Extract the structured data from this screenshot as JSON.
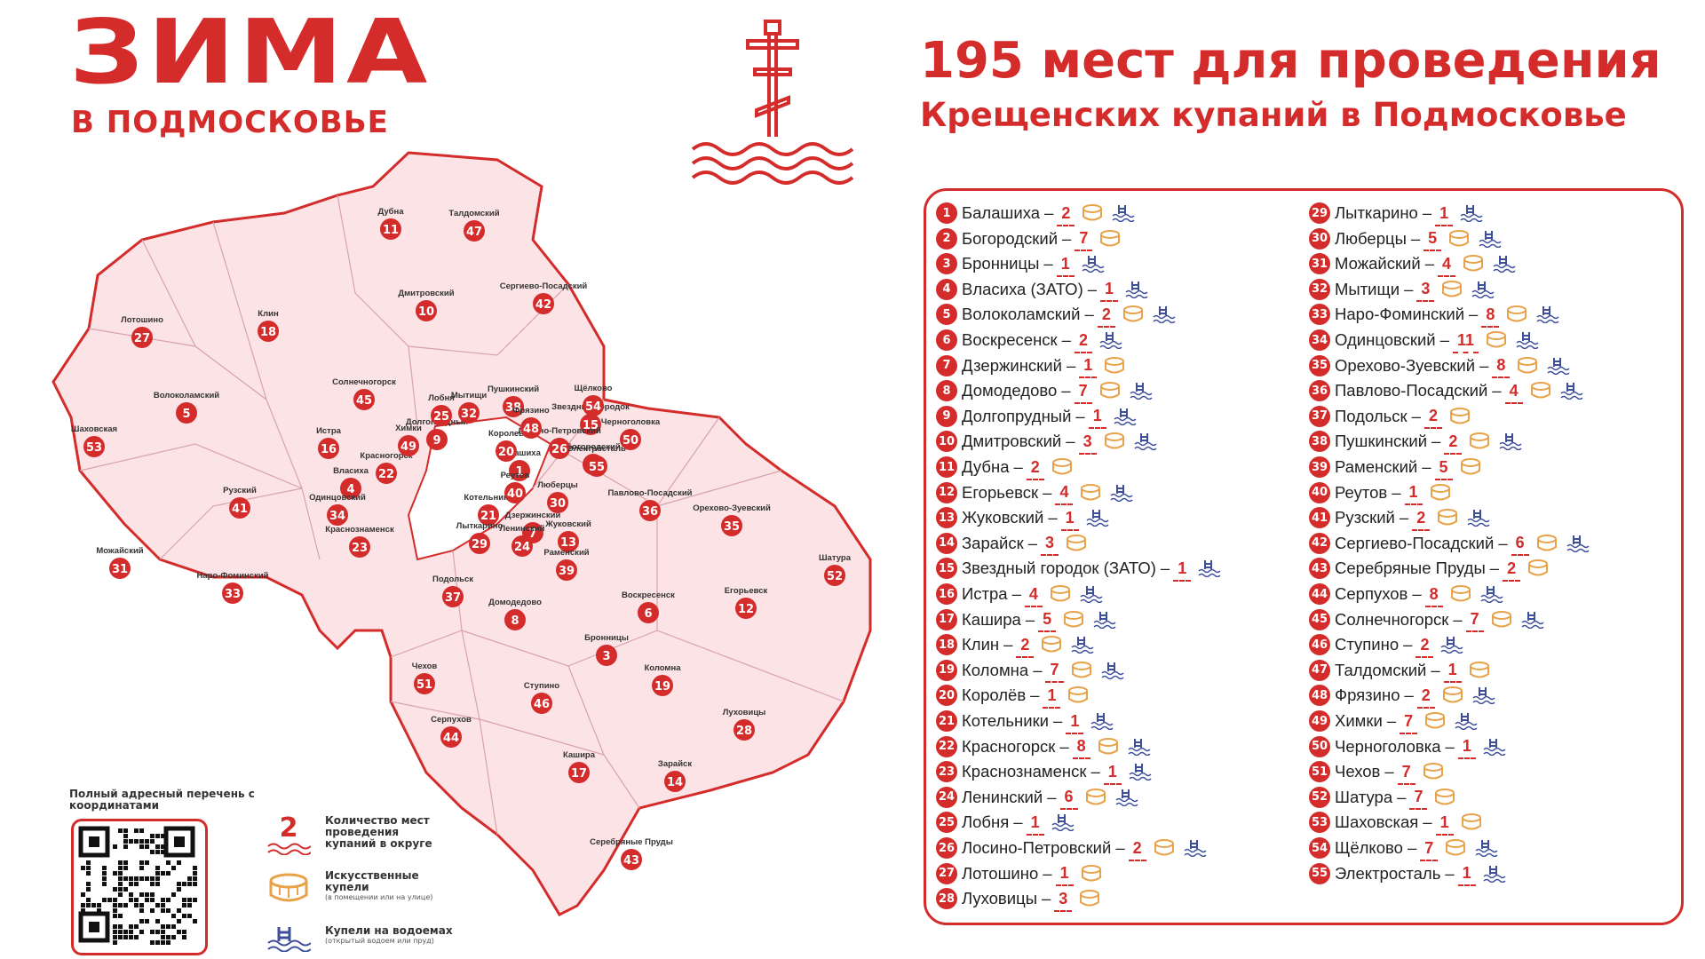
{
  "header": {
    "brand_title": "ЗИМА",
    "brand_subtitle": "В ПОДМОСКОВЬЕ",
    "headline_line1": "195 мест для проведения",
    "headline_line2": "Крещенских купаний в Подмосковье"
  },
  "colors": {
    "accent": "#d42b2b",
    "region_fill": "#fbe3e6",
    "font_icon": "#e8a24a",
    "pool_icon": "#3d4f9a"
  },
  "map": {
    "labels": [
      {
        "n": "1",
        "name": "Балашиха"
      },
      {
        "n": "2",
        "name": "Богородский"
      },
      {
        "n": "3",
        "name": "Бронницы"
      },
      {
        "n": "4",
        "name": "Власиха"
      },
      {
        "n": "5",
        "name": "Волоколамский"
      },
      {
        "n": "6",
        "name": "Воскресенск"
      },
      {
        "n": "7",
        "name": "Дзержинский"
      },
      {
        "n": "8",
        "name": "Домодедово"
      },
      {
        "n": "9",
        "name": "Долгопрудный"
      },
      {
        "n": "10",
        "name": "Дмитровский"
      },
      {
        "n": "11",
        "name": "Дубна"
      },
      {
        "n": "12",
        "name": "Егорьевск"
      },
      {
        "n": "13",
        "name": "Жуковский"
      },
      {
        "n": "14",
        "name": "Зарайск"
      },
      {
        "n": "15",
        "name": "Звездный городок"
      },
      {
        "n": "16",
        "name": "Истра"
      },
      {
        "n": "17",
        "name": "Кашира"
      },
      {
        "n": "18",
        "name": "Клин"
      },
      {
        "n": "19",
        "name": "Коломна"
      },
      {
        "n": "20",
        "name": "Королев"
      },
      {
        "n": "21",
        "name": "Котельники"
      },
      {
        "n": "22",
        "name": "Красногорск"
      },
      {
        "n": "23",
        "name": "Краснознаменск"
      },
      {
        "n": "24",
        "name": "Ленинский"
      },
      {
        "n": "25",
        "name": "Лобня"
      },
      {
        "n": "26",
        "name": "Лосино-Петровский"
      },
      {
        "n": "27",
        "name": "Лотошино"
      },
      {
        "n": "28",
        "name": "Луховицы"
      },
      {
        "n": "29",
        "name": "Лыткарино"
      },
      {
        "n": "30",
        "name": "Люберцы"
      },
      {
        "n": "31",
        "name": "Можайский"
      },
      {
        "n": "32",
        "name": "Мытищи"
      },
      {
        "n": "33",
        "name": "Наро-Фоминский"
      },
      {
        "n": "34",
        "name": "Одинцовский"
      },
      {
        "n": "35",
        "name": "Орехово-Зуевский"
      },
      {
        "n": "36",
        "name": "Павлово-Посадский"
      },
      {
        "n": "37",
        "name": "Подольск"
      },
      {
        "n": "38",
        "name": "Пушкинский"
      },
      {
        "n": "39",
        "name": "Раменский"
      },
      {
        "n": "40",
        "name": "Реутов"
      },
      {
        "n": "41",
        "name": "Рузский"
      },
      {
        "n": "42",
        "name": "Сергиево-Посадский"
      },
      {
        "n": "43",
        "name": "Серебряные Пруды"
      },
      {
        "n": "44",
        "name": "Серпухов"
      },
      {
        "n": "45",
        "name": "Солнечногорск"
      },
      {
        "n": "46",
        "name": "Ступино"
      },
      {
        "n": "47",
        "name": "Талдомский"
      },
      {
        "n": "48",
        "name": "Фрязино"
      },
      {
        "n": "49",
        "name": "Химки"
      },
      {
        "n": "50",
        "name": "Черноголовка"
      },
      {
        "n": "51",
        "name": "Чехов"
      },
      {
        "n": "52",
        "name": "Шатура"
      },
      {
        "n": "53",
        "name": "Шаховская"
      },
      {
        "n": "54",
        "name": "Щёлково"
      },
      {
        "n": "55",
        "name": "Электросталь"
      }
    ]
  },
  "districts": [
    {
      "n": "1",
      "name": "Балашиха",
      "count": "2",
      "font": true,
      "pool": true
    },
    {
      "n": "2",
      "name": "Богородский",
      "count": "7",
      "font": true,
      "pool": false
    },
    {
      "n": "3",
      "name": "Бронницы",
      "count": "1",
      "font": false,
      "pool": true
    },
    {
      "n": "4",
      "name": "Власиха (ЗАТО)",
      "count": "1",
      "font": false,
      "pool": true
    },
    {
      "n": "5",
      "name": "Волоколамский",
      "count": "2",
      "font": true,
      "pool": true
    },
    {
      "n": "6",
      "name": "Воскресенск",
      "count": "2",
      "font": false,
      "pool": true
    },
    {
      "n": "7",
      "name": "Дзержинский",
      "count": "1",
      "font": true,
      "pool": false
    },
    {
      "n": "8",
      "name": "Домодедово",
      "count": "7",
      "font": true,
      "pool": true
    },
    {
      "n": "9",
      "name": "Долгопрудный",
      "count": "1",
      "font": false,
      "pool": true
    },
    {
      "n": "10",
      "name": "Дмитровский",
      "count": "3",
      "font": true,
      "pool": true
    },
    {
      "n": "11",
      "name": "Дубна",
      "count": "2",
      "font": true,
      "pool": false
    },
    {
      "n": "12",
      "name": "Егорьевск",
      "count": "4",
      "font": true,
      "pool": true
    },
    {
      "n": "13",
      "name": "Жуковский",
      "count": "1",
      "font": false,
      "pool": true
    },
    {
      "n": "14",
      "name": "Зарайск",
      "count": "3",
      "font": true,
      "pool": false
    },
    {
      "n": "15",
      "name": "Звездный городок (ЗАТО)",
      "count": "1",
      "font": false,
      "pool": true
    },
    {
      "n": "16",
      "name": "Истра",
      "count": "4",
      "font": true,
      "pool": true
    },
    {
      "n": "17",
      "name": "Кашира",
      "count": "5",
      "font": true,
      "pool": true
    },
    {
      "n": "18",
      "name": "Клин",
      "count": "2",
      "font": true,
      "pool": true
    },
    {
      "n": "19",
      "name": "Коломна",
      "count": "7",
      "font": true,
      "pool": true
    },
    {
      "n": "20",
      "name": "Королёв",
      "count": "1",
      "font": true,
      "pool": false
    },
    {
      "n": "21",
      "name": "Котельники",
      "count": "1",
      "font": false,
      "pool": true
    },
    {
      "n": "22",
      "name": "Красногорск",
      "count": "8",
      "font": true,
      "pool": true
    },
    {
      "n": "23",
      "name": "Краснознаменск",
      "count": "1",
      "font": false,
      "pool": true
    },
    {
      "n": "24",
      "name": "Ленинский",
      "count": "6",
      "font": true,
      "pool": true
    },
    {
      "n": "25",
      "name": "Лобня",
      "count": "1",
      "font": false,
      "pool": true
    },
    {
      "n": "26",
      "name": "Лосино-Петровский",
      "count": "2",
      "font": true,
      "pool": true
    },
    {
      "n": "27",
      "name": "Лотошино",
      "count": "1",
      "font": true,
      "pool": false
    },
    {
      "n": "28",
      "name": "Луховицы",
      "count": "3",
      "font": true,
      "pool": false
    },
    {
      "n": "29",
      "name": "Лыткарино",
      "count": "1",
      "font": false,
      "pool": true
    },
    {
      "n": "30",
      "name": "Люберцы",
      "count": "5",
      "font": true,
      "pool": true
    },
    {
      "n": "31",
      "name": "Можайский",
      "count": "4",
      "font": true,
      "pool": true
    },
    {
      "n": "32",
      "name": "Мытищи",
      "count": "3",
      "font": true,
      "pool": true
    },
    {
      "n": "33",
      "name": "Наро-Фоминский",
      "count": "8",
      "font": true,
      "pool": true
    },
    {
      "n": "34",
      "name": "Одинцовский",
      "count": "11",
      "font": true,
      "pool": true
    },
    {
      "n": "35",
      "name": "Орехово-Зуевский",
      "count": "8",
      "font": true,
      "pool": true
    },
    {
      "n": "36",
      "name": "Павлово-Посадский",
      "count": "4",
      "font": true,
      "pool": true
    },
    {
      "n": "37",
      "name": "Подольск",
      "count": "2",
      "font": true,
      "pool": false
    },
    {
      "n": "38",
      "name": "Пушкинский",
      "count": "2",
      "font": true,
      "pool": true
    },
    {
      "n": "39",
      "name": "Раменский",
      "count": "5",
      "font": true,
      "pool": false
    },
    {
      "n": "40",
      "name": "Реутов",
      "count": "1",
      "font": true,
      "pool": false
    },
    {
      "n": "41",
      "name": "Рузский",
      "count": "2",
      "font": true,
      "pool": true
    },
    {
      "n": "42",
      "name": "Сергиево-Посадский",
      "count": "6",
      "font": true,
      "pool": true
    },
    {
      "n": "43",
      "name": "Серебряные Пруды",
      "count": "2",
      "font": true,
      "pool": false
    },
    {
      "n": "44",
      "name": "Серпухов",
      "count": "8",
      "font": true,
      "pool": true
    },
    {
      "n": "45",
      "name": "Солнечногорск",
      "count": "7",
      "font": true,
      "pool": true
    },
    {
      "n": "46",
      "name": "Ступино",
      "count": "2",
      "font": false,
      "pool": true
    },
    {
      "n": "47",
      "name": "Талдомский",
      "count": "1",
      "font": true,
      "pool": false
    },
    {
      "n": "48",
      "name": "Фрязино",
      "count": "2",
      "font": true,
      "pool": true
    },
    {
      "n": "49",
      "name": "Химки",
      "count": "7",
      "font": true,
      "pool": true
    },
    {
      "n": "50",
      "name": "Черноголовка",
      "count": "1",
      "font": false,
      "pool": true
    },
    {
      "n": "51",
      "name": "Чехов",
      "count": "7",
      "font": true,
      "pool": false
    },
    {
      "n": "52",
      "name": "Шатура",
      "count": "7",
      "font": true,
      "pool": false
    },
    {
      "n": "53",
      "name": "Шаховская",
      "count": "1",
      "font": true,
      "pool": false
    },
    {
      "n": "54",
      "name": "Щёлково",
      "count": "7",
      "font": true,
      "pool": true
    },
    {
      "n": "55",
      "name": "Электросталь",
      "count": "1",
      "font": false,
      "pool": true
    }
  ],
  "legend": {
    "qr_caption": "Полный адресный перечень с координатами",
    "count_example": "2",
    "count_label": "Количество мест проведения купаний в округе",
    "font_label": "Искусственные купели",
    "font_note": "(в помещении или на улице)",
    "pool_label": "Купели на водоемах",
    "pool_note": "(открытый водоем или пруд)"
  }
}
